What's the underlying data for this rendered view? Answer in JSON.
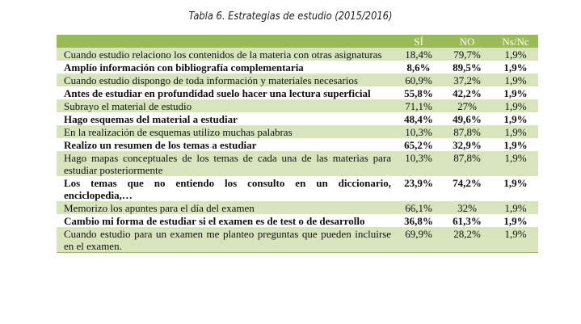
{
  "title": "Tabla 6. Estrategias de estudio (2015/2016)",
  "table": {
    "header": [
      "",
      "SÍ",
      "NO",
      "Ns/Nc"
    ],
    "rows": [
      [
        "Cuando estudio relaciono los contenidos de la materia con otras asignaturas",
        "18,4%",
        "79,7%",
        "1,9%"
      ],
      [
        "Amplío información con bibliografía complementaria",
        "8,6%",
        "89,5%",
        "1,9%"
      ],
      [
        "Cuando estudio dispongo de toda información y materiales necesarios",
        "60,9%",
        "37,2%",
        "1,9%"
      ],
      [
        "Antes de estudiar en profundidad suelo hacer una lectura superficial",
        "55,8%",
        "42,2%",
        "1,9%"
      ],
      [
        "Subrayo el material de estudio",
        "71,1%",
        "27%",
        "1,9%"
      ],
      [
        "Hago esquemas del material a estudiar",
        "48,4%",
        "49,6%",
        "1,9%"
      ],
      [
        "En la realización de esquemas utilizo muchas palabras",
        "10,3%",
        "87,8%",
        "1,9%"
      ],
      [
        "Realizo un resumen de los temas a estudiar",
        "65,2%",
        "32,9%",
        "1,9%"
      ],
      [
        "Hago mapas conceptuales de los temas de cada una de las materias para estudiar posteriormente",
        "10,3%",
        "87,8%",
        "1,9%"
      ],
      [
        "Los temas que no entiendo los consulto en un diccionario, enciclopedia,…",
        "23,9%",
        "74,2%",
        "1,9%"
      ],
      [
        "Memorizo los apuntes para el día del examen",
        "66,1%",
        "32%",
        "1,9%"
      ],
      [
        "Cambio mi forma de estudiar si el examen es de test o de desarrollo",
        "36,8%",
        "61,3%",
        "1,9%"
      ],
      [
        "Cuando estudio para un examen me planteo preguntas que pueden incluirse en el examen.",
        "69,9%",
        "28,2%",
        "1,9%"
      ]
    ]
  }
}
